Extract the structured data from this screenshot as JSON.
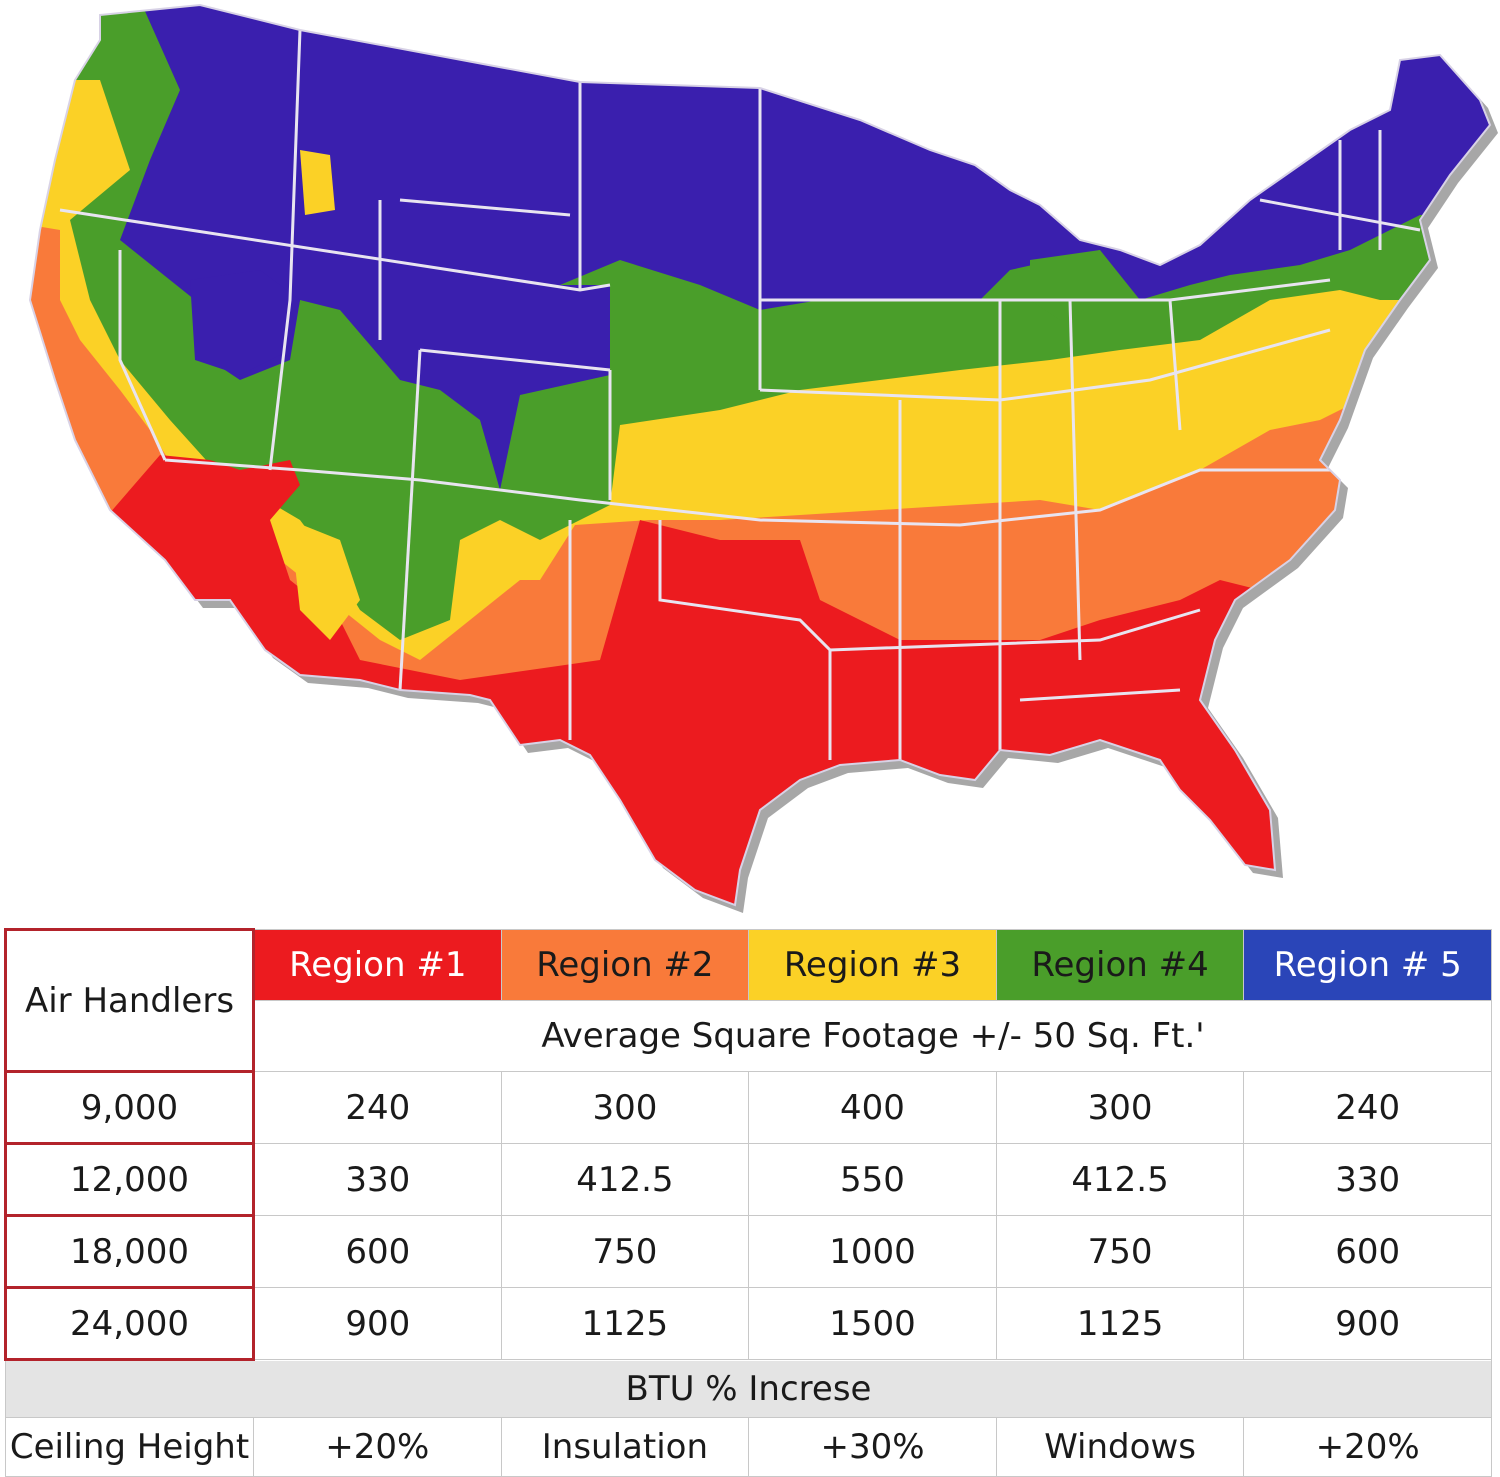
{
  "map": {
    "region_colors": {
      "region_1": "#ec1b1f",
      "region_2": "#f97a3a",
      "region_3": "#fbd126",
      "region_4": "#4a9e2a",
      "region_5": "#3a1fae"
    },
    "border_color": "#e8e4f0",
    "shadow_color": "#8a8a8a"
  },
  "table": {
    "corner_label": "Air Handlers",
    "regions": [
      {
        "label": "Region #1",
        "color": "#ec1b1f",
        "text_color": "#ffffff"
      },
      {
        "label": "Region #2",
        "color": "#f97a3a",
        "text_color": "#1a1a1a"
      },
      {
        "label": "Region #3",
        "color": "#fbd126",
        "text_color": "#1a1a1a"
      },
      {
        "label": "Region #4",
        "color": "#4a9e2a",
        "text_color": "#1a1a1a"
      },
      {
        "label": "Region # 5",
        "color": "#2a45b8",
        "text_color": "#ffffff"
      }
    ],
    "subtitle": "Average Square Footage +/- 50 Sq. Ft.'",
    "rows": [
      {
        "btu": "9,000",
        "values": [
          "240",
          "300",
          "400",
          "300",
          "240"
        ]
      },
      {
        "btu": "12,000",
        "values": [
          "330",
          "412.5",
          "550",
          "412.5",
          "330"
        ]
      },
      {
        "btu": "18,000",
        "values": [
          "600",
          "750",
          "1000",
          "750",
          "600"
        ]
      },
      {
        "btu": "24,000",
        "values": [
          "900",
          "1125",
          "1500",
          "1125",
          "900"
        ]
      }
    ],
    "btu_increase_label": "BTU % Increse",
    "modifiers": [
      {
        "name": "Ceiling Height",
        "value": "+20%"
      },
      {
        "name": "Insulation",
        "value": "+30%"
      },
      {
        "name": "Windows",
        "value": "+20%"
      }
    ]
  }
}
